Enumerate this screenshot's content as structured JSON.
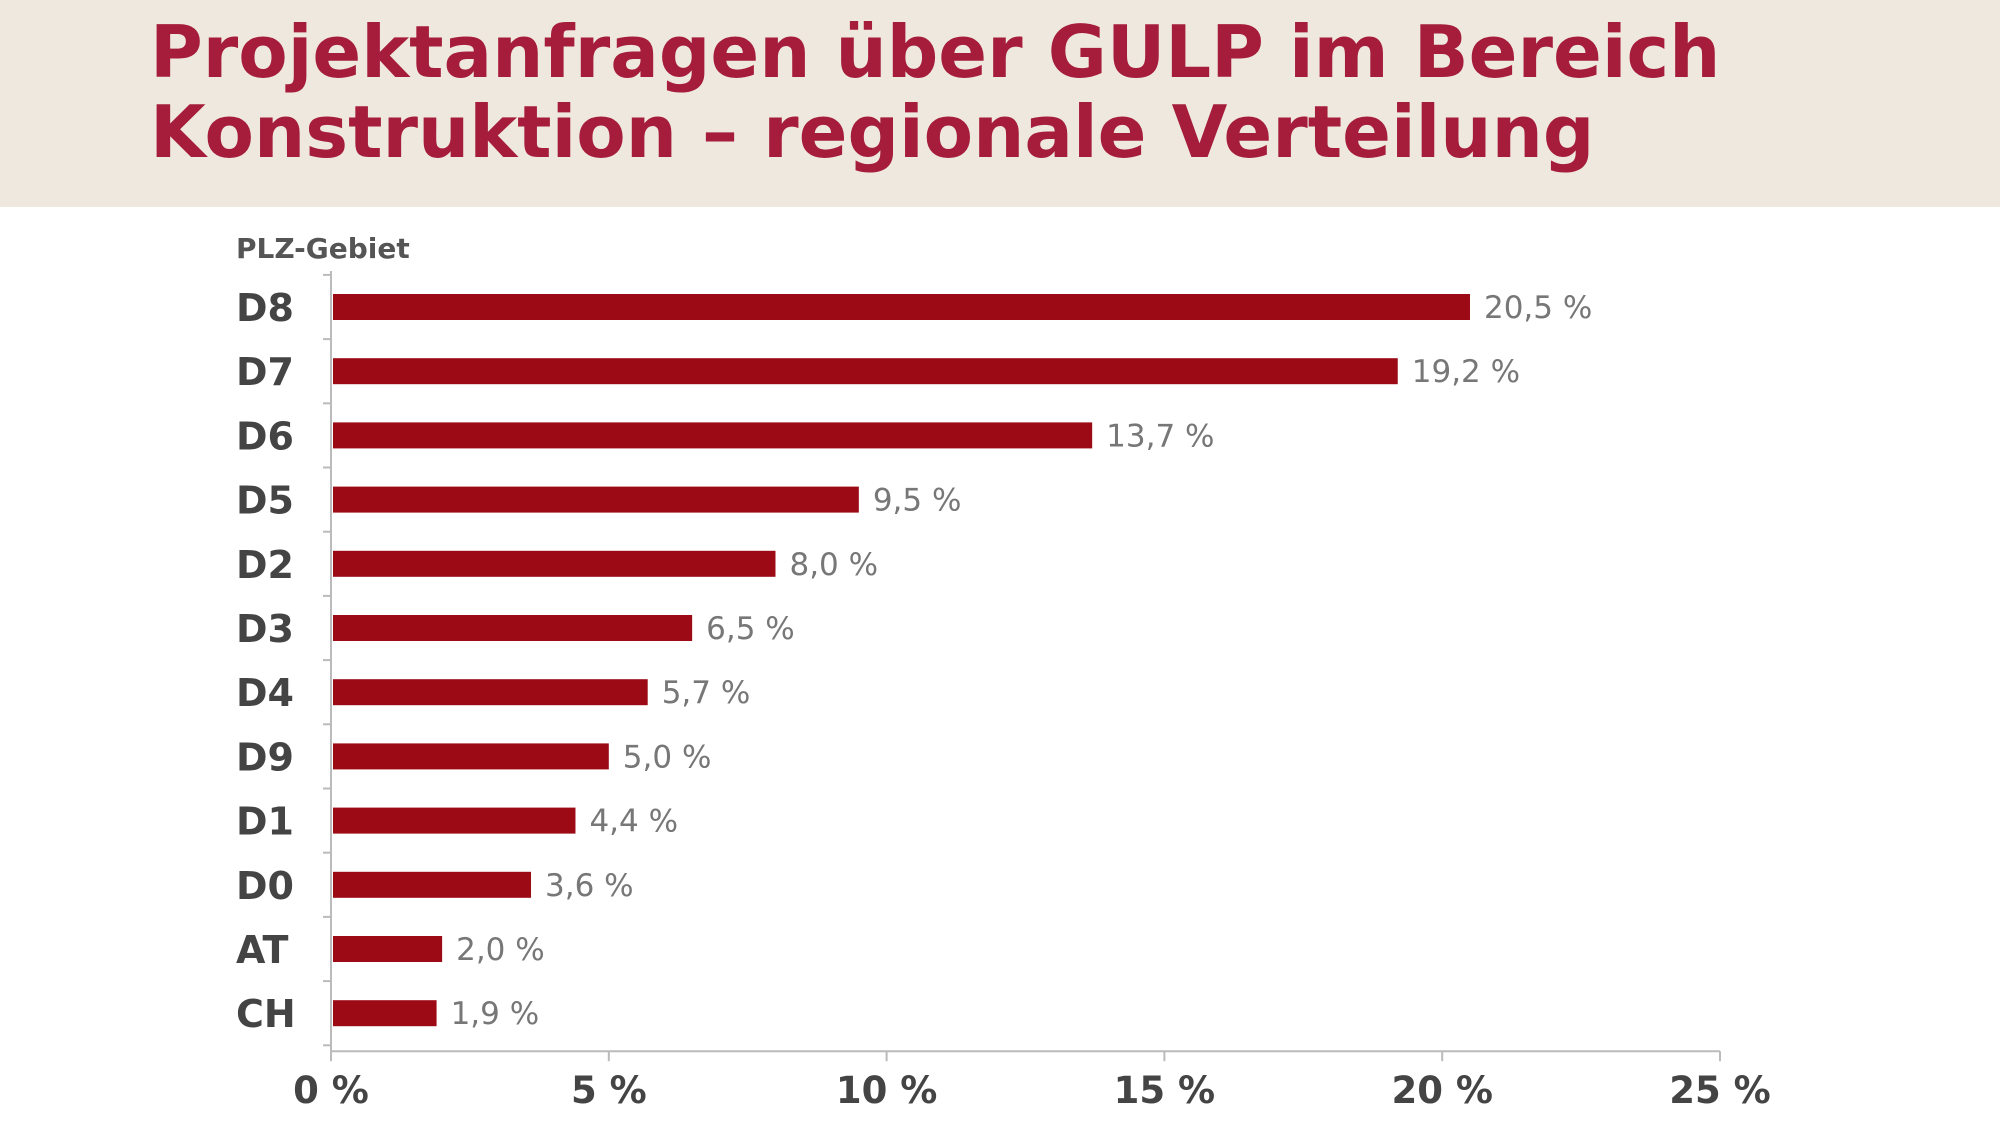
{
  "header": {
    "title_line1": "Projektanfragen über GULP im Bereich",
    "title_line2": "Konstruktion – regionale Verteilung"
  },
  "colors": {
    "bar": "#9b0a15",
    "title": "#a51d3a",
    "header_bg": "#efe8df",
    "axis": "#bbbbbb"
  },
  "chart_data": {
    "type": "bar",
    "orientation": "horizontal",
    "ylabel": "PLZ-Gebiet",
    "xlabel": "",
    "categories": [
      "D8",
      "D7",
      "D6",
      "D5",
      "D2",
      "D3",
      "D4",
      "D9",
      "D1",
      "D0",
      "AT",
      "CH"
    ],
    "values": [
      20.5,
      19.2,
      13.7,
      9.5,
      8.0,
      6.5,
      5.7,
      5.0,
      4.4,
      3.6,
      2.0,
      1.9
    ],
    "value_labels": [
      "20,5 %",
      "19,2 %",
      "13,7 %",
      "9,5 %",
      "8,0 %",
      "6,5 %",
      "5,7 %",
      "5,0 %",
      "4,4 %",
      "3,6 %",
      "2,0 %",
      "1,9 %"
    ],
    "xlim": [
      0,
      25
    ],
    "xticks": [
      0,
      5,
      10,
      15,
      20,
      25
    ],
    "xtick_labels": [
      "0 %",
      "5 %",
      "10 %",
      "15 %",
      "20 %",
      "25 %"
    ],
    "grid": false,
    "legend": "none"
  }
}
